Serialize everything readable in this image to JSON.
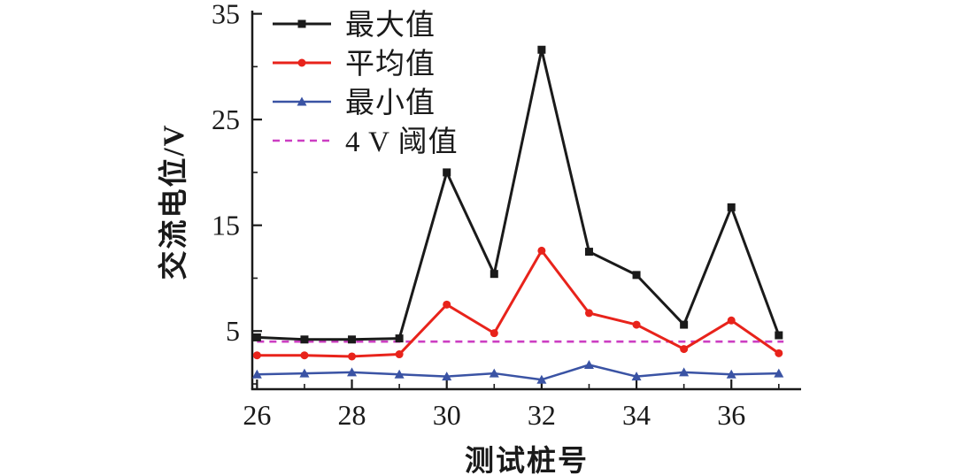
{
  "figure": {
    "background": "#ffffff",
    "text_color": "#1a1a1a"
  },
  "chart_data": {
    "type": "line",
    "title": "",
    "xlabel": "测试桩号",
    "ylabel": "交流电位/V",
    "x": [
      26,
      27,
      28,
      29,
      30,
      31,
      32,
      33,
      34,
      35,
      36,
      37
    ],
    "series": [
      {
        "name": "最大值",
        "color": "#1a1a1a",
        "marker": "square",
        "line_width": 3,
        "values": [
          4.4,
          4.2,
          4.2,
          4.3,
          20.0,
          10.4,
          31.6,
          12.5,
          10.3,
          5.6,
          16.7,
          4.6
        ]
      },
      {
        "name": "平均值",
        "color": "#e8231b",
        "marker": "circle",
        "line_width": 3,
        "values": [
          2.7,
          2.7,
          2.6,
          2.8,
          7.5,
          4.8,
          12.6,
          6.7,
          5.6,
          3.3,
          6.0,
          2.9
        ]
      },
      {
        "name": "最小值",
        "color": "#3a53a4",
        "marker": "triangle",
        "line_width": 2.5,
        "values": [
          0.9,
          1.0,
          1.1,
          0.9,
          0.7,
          1.0,
          0.4,
          1.8,
          0.7,
          1.1,
          0.9,
          1.0
        ]
      }
    ],
    "threshold": {
      "name": "4 V 阈值",
      "value": 4,
      "color": "#cc3ec2",
      "style": "dashed",
      "x_start": 26,
      "x_end": 37.1
    },
    "xlim": [
      25.9,
      37.47
    ],
    "ylim": [
      -0.5,
      35.3
    ],
    "x_major_ticks": [
      26,
      28,
      30,
      32,
      34,
      36
    ],
    "x_minor_ticks": [
      27,
      29,
      31,
      33,
      35,
      37
    ],
    "y_major_ticks": [
      5,
      15,
      25,
      35
    ],
    "y_minor_ticks": [
      0,
      10,
      20,
      30
    ],
    "legend_position": "top-left",
    "grid": false,
    "axis_color": "#1a1a1a"
  }
}
